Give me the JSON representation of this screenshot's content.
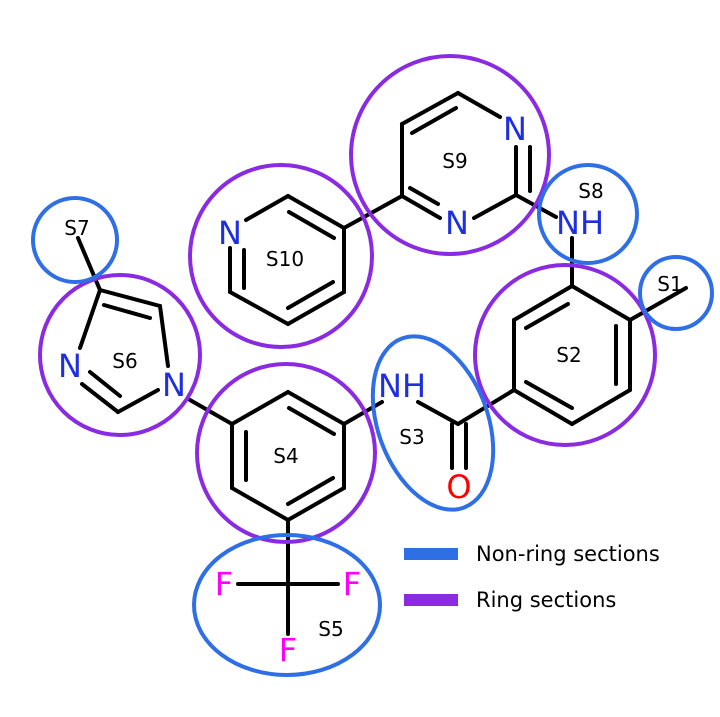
{
  "colors": {
    "non_ring": "#2f6fe6",
    "ring": "#8a2be2",
    "nitrogen": "#1f2fe0",
    "oxygen": "#ff0000",
    "fluorine": "#ff00ff",
    "bond": "#000000"
  },
  "sections": [
    {
      "id": "S1",
      "label": "S1",
      "kind": "non_ring"
    },
    {
      "id": "S2",
      "label": "S2",
      "kind": "ring"
    },
    {
      "id": "S3",
      "label": "S3",
      "kind": "non_ring"
    },
    {
      "id": "S4",
      "label": "S4",
      "kind": "ring"
    },
    {
      "id": "S5",
      "label": "S5",
      "kind": "non_ring"
    },
    {
      "id": "S6",
      "label": "S6",
      "kind": "ring"
    },
    {
      "id": "S7",
      "label": "S7",
      "kind": "non_ring"
    },
    {
      "id": "S8",
      "label": "S8",
      "kind": "non_ring"
    },
    {
      "id": "S9",
      "label": "S9",
      "kind": "ring"
    },
    {
      "id": "S10",
      "label": "S10",
      "kind": "ring"
    }
  ],
  "atoms": {
    "s9_n_top": "N",
    "s9_n_bottom": "N",
    "s8_nh": "NH",
    "s10_n": "N",
    "s6_n_left": "N",
    "s6_n_right": "N",
    "s3_nh": "NH",
    "s3_o": "O",
    "s5_f_left": "F",
    "s5_f_right": "F",
    "s5_f_bottom": "F"
  },
  "legend": {
    "non_ring": "Non-ring sections",
    "ring": "Ring sections"
  }
}
